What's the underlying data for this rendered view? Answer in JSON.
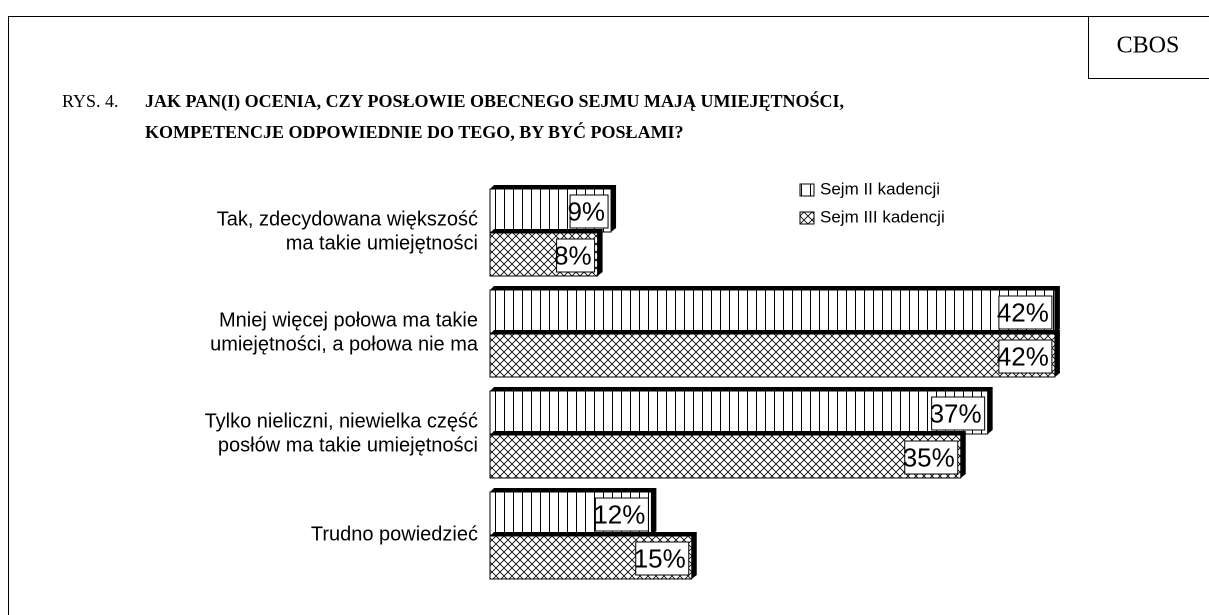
{
  "chart_data": {
    "type": "hbar",
    "source": "CBOS",
    "figure_number": "RYS. 4.",
    "title": [
      "JAK PAN(I) OCENIA, CZY POSŁOWIE OBECNEGO SEJMU MAJĄ UMIEJĘTNOŚCI,",
      "KOMPETENCJE ODPOWIEDNIE DO TEGO, BY BYĆ POSŁAMI?"
    ],
    "categories": [
      [
        "Tak, zdecydowana większość",
        "ma takie umiejętności"
      ],
      [
        "Mniej więcej połowa ma takie",
        "umiejętności, a połowa nie ma"
      ],
      [
        "Tylko nieliczni, niewielka część",
        "posłów ma takie umiejętności"
      ],
      [
        "Trudno powiedzieć"
      ]
    ],
    "series": [
      {
        "name": "Sejm II kadencji",
        "pattern": "vertical",
        "values": [
          9,
          42,
          37,
          12
        ],
        "value_labels": [
          "9%",
          "42%",
          "37%",
          "12%"
        ]
      },
      {
        "name": "Sejm III kadencji",
        "pattern": "crosshatch",
        "values": [
          8,
          42,
          35,
          15
        ],
        "value_labels": [
          "8%",
          "42%",
          "35%",
          "15%"
        ]
      }
    ]
  }
}
